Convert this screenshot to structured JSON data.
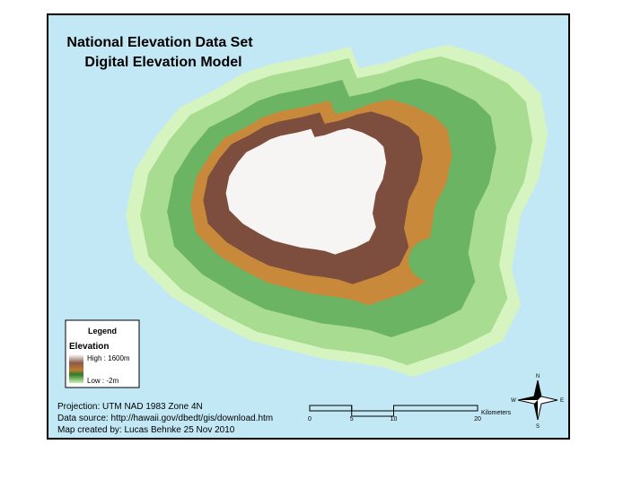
{
  "title": {
    "lines": [
      "National Elevation Data Set",
      "Digital Elevation Model"
    ]
  },
  "legend": {
    "title": "Legend",
    "heading": "Elevation",
    "high": "High : 1600m",
    "low": "Low : -2m"
  },
  "notes": [
    "Projection: UTM NAD 1983 Zone 4N",
    "Data source: http://hawaii.gov/dbedt/gis/download.htm",
    "Map created by: Lucas Behnke 25 Nov 2010"
  ],
  "scale_bar": {
    "ticks": [
      0,
      5,
      10,
      20
    ],
    "unit": "Kilometers"
  },
  "north_arrow": {
    "n": "N",
    "s": "S",
    "e": "E",
    "w": "W"
  }
}
